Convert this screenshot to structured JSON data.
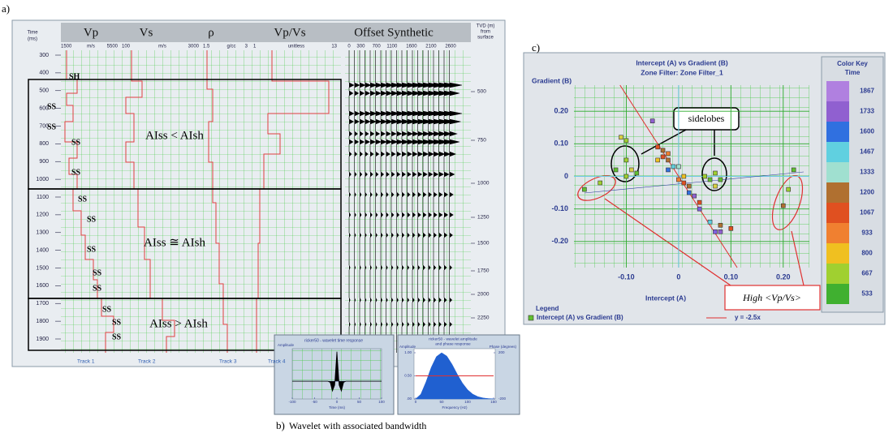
{
  "figure": {
    "label_a": "a)",
    "label_b": "b)",
    "caption_b": "Wavelet with associated bandwidth",
    "label_c": "c)"
  },
  "well_log": {
    "track_titles": [
      "Vp",
      "Vs",
      "ρ",
      "Vp/Vs",
      "Offset Synthetic"
    ],
    "scales": [
      [
        1500,
        "m/s",
        5500
      ],
      [
        100,
        "m/s",
        3000
      ],
      [
        1.5,
        "g/cc",
        3
      ],
      [
        1,
        "unitless",
        13
      ]
    ],
    "offsets": [
      0,
      300,
      700,
      1100,
      1600,
      2100,
      2600
    ],
    "time_label": [
      "Time",
      "(ms)"
    ],
    "time_ticks": [
      300,
      400,
      500,
      600,
      700,
      800,
      900,
      1000,
      1100,
      1200,
      1300,
      1400,
      1500,
      1600,
      1700,
      1800,
      1900
    ],
    "tvd_label": [
      "TVD (m)",
      "from",
      "surface"
    ],
    "tvd_ticks": [
      500,
      750,
      1000,
      1250,
      1500,
      1750,
      2000,
      2250
    ],
    "zones": [
      "AIss < AIsh",
      "AIss ≅ AIsh",
      "AIss > AIsh"
    ],
    "lithology": [
      "SH",
      "SS",
      "SS",
      "SS",
      "SS",
      "SS",
      "SS",
      "SS",
      "SS",
      "SS",
      "SS",
      "SS",
      "SS"
    ],
    "tracks": [
      "Track 1",
      "Track 2",
      "Track 3",
      "Track 4"
    ]
  },
  "chart_data": [
    {
      "type": "scatter",
      "title": "Intercept (A) vs Gradient (B)",
      "subtitle": "Zone Filter: Zone Filter_1",
      "x_label": "Intercept (A)",
      "y_label": "Gradient (B)",
      "xlim": [
        -0.2,
        0.25
      ],
      "xticks": [
        {
          "value": -0.1,
          "label": "-0.10"
        },
        0,
        {
          "value": 0.1,
          "label": "0.10"
        },
        {
          "value": 0.2,
          "label": "0.20"
        }
      ],
      "ylim": [
        -0.28,
        0.28
      ],
      "yticks": [
        {
          "value": 0.2,
          "label": "0.20"
        },
        {
          "value": 0.1,
          "label": "0.10"
        },
        0,
        {
          "value": -0.1,
          "label": "-0.10"
        },
        {
          "value": -0.2,
          "label": "-0.20"
        }
      ],
      "grid": true,
      "x": [
        -0.11,
        -0.1,
        -0.12,
        -0.1,
        -0.09,
        -0.08,
        -0.1,
        -0.05,
        -0.04,
        -0.03,
        -0.02,
        -0.03,
        -0.02,
        -0.04,
        -0.01,
        -0.02,
        0.0,
        0.01,
        0.02,
        0.02,
        0.03,
        0.04,
        0.04,
        0.06,
        0.07,
        0.08,
        0.1,
        0.08,
        0.0,
        0.01,
        0.06,
        0.07,
        0.08,
        0.07,
        0.05,
        -0.18,
        -0.15,
        0.22,
        0.21,
        0.2
      ],
      "values": [
        0.12,
        0.11,
        0.02,
        0.05,
        0.02,
        0.01,
        0.0,
        0.17,
        0.09,
        0.08,
        0.07,
        0.06,
        0.05,
        0.05,
        0.03,
        0.02,
        -0.01,
        -0.02,
        -0.03,
        -0.05,
        -0.06,
        -0.08,
        -0.1,
        -0.14,
        -0.17,
        -0.17,
        -0.16,
        -0.15,
        0.03,
        0.0,
        -0.01,
        0.01,
        -0.01,
        -0.03,
        0.0,
        -0.04,
        -0.02,
        0.02,
        -0.04,
        -0.09
      ],
      "point_colors": [
        "#d8d040",
        "#a0d030",
        "#60c030",
        "#a0d030",
        "#d8d040",
        "#60c030",
        "#a0d030",
        "#9060d0",
        "#e05020",
        "#b07030",
        "#f08030",
        "#e05020",
        "#b07030",
        "#f0c020",
        "#60d0e0",
        "#3070e0",
        "#f08030",
        "#e05020",
        "#b07030",
        "#3070e0",
        "#9060d0",
        "#e05020",
        "#8060e0",
        "#60d0e0",
        "#8060e0",
        "#9060d0",
        "#e05020",
        "#b07030",
        "#a0e0d0",
        "#f0c020",
        "#60c030",
        "#a0d030",
        "#60c030",
        "#d8d040",
        "#a0d030",
        "#60c030",
        "#a0d030",
        "#60c030",
        "#a0d030",
        "#b07030"
      ],
      "color_key": {
        "title": "Color Key",
        "subtitle": "Time",
        "labels": [
          1867,
          1733,
          1600,
          1467,
          1333,
          1200,
          1067,
          933,
          800,
          667,
          533
        ],
        "colors": [
          "#b080e0",
          "#9060d0",
          "#3070e0",
          "#60d0e0",
          "#a0e0d0",
          "#b07030",
          "#e05020",
          "#f08030",
          "#f0c020",
          "#a0d030",
          "#40b030"
        ]
      },
      "legend": {
        "title": "Legend",
        "series": "Intercept (A) vs Gradient (B)",
        "trend": "y = -2.5x"
      },
      "trend_slope": -2.5,
      "trend_color": "#e03030",
      "annotations": [
        "sidelobes",
        "High <Vp/Vs>"
      ]
    },
    {
      "type": "line",
      "title": "ricker50 - wavelet time response",
      "x_label": "Time (ms)",
      "y_label": "Amplitude",
      "xlim": [
        -100,
        100
      ],
      "xticks": [
        -100,
        -50,
        0,
        50,
        100
      ],
      "ylim": [
        -0.6,
        1.1
      ],
      "x": [
        -100,
        -20,
        -15,
        -10,
        -5,
        0,
        5,
        10,
        15,
        20,
        100
      ],
      "values": [
        0,
        0,
        -0.04,
        -0.33,
        -0.13,
        1,
        -0.13,
        -0.33,
        -0.04,
        0,
        0
      ],
      "color": "#000000"
    },
    {
      "type": "area",
      "title": [
        "ricker50 - wavelet amplitude",
        "and phase response"
      ],
      "x_label": "Frequency (Hz)",
      "y_label": "Amplitude",
      "y2_label": "Phase (degrees)",
      "xlim": [
        0,
        150
      ],
      "xticks": [
        0,
        50,
        100,
        150
      ],
      "ylim": [
        0,
        1
      ],
      "yticks": [
        {
          "value": 1,
          "label": "1.00"
        },
        {
          "value": 0.5,
          "label": "0.50"
        },
        {
          "value": 0,
          "label": ".00"
        }
      ],
      "y2lim": [
        -200,
        200
      ],
      "y2ticks": [
        200,
        -200
      ],
      "x": [
        0,
        10,
        20,
        30,
        40,
        50,
        60,
        70,
        80,
        90,
        100,
        110,
        120,
        130,
        140,
        150
      ],
      "series": [
        {
          "name": "Amplitude",
          "color": "#2060d0",
          "values": [
            0,
            0.104,
            0.371,
            0.683,
            0.917,
            1,
            0.927,
            0.751,
            0.538,
            0.345,
            0.199,
            0.104,
            0.049,
            0.021,
            0.008,
            0.003
          ]
        },
        {
          "name": "Phase",
          "color": "#e03030",
          "axis": "y2",
          "values": [
            0,
            0,
            0,
            0,
            0,
            0,
            0,
            0,
            0,
            0,
            0,
            0,
            0,
            0,
            0,
            0
          ]
        }
      ]
    }
  ]
}
